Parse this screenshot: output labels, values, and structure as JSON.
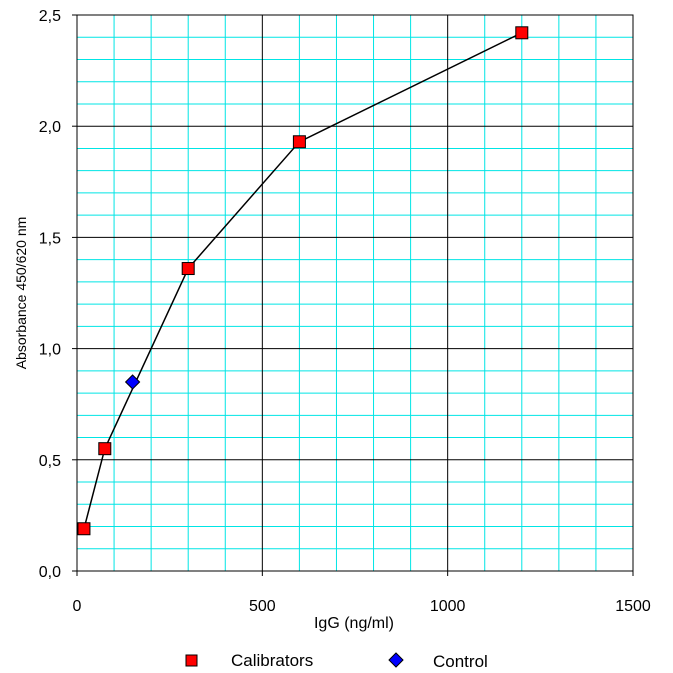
{
  "chart_data": {
    "type": "line",
    "title": "",
    "xlabel": "IgG (ng/ml)",
    "ylabel": "Absorbance 450/620 nm",
    "xlim": [
      0,
      1500
    ],
    "ylim": [
      0,
      2.5
    ],
    "x_major_ticks": [
      0,
      500,
      1000,
      1500
    ],
    "x_tick_labels": [
      "0",
      "500",
      "1000",
      "1500"
    ],
    "y_major_ticks": [
      0,
      0.5,
      1.0,
      1.5,
      2.0,
      2.5
    ],
    "y_tick_labels": [
      "0,0",
      "0,5",
      "1,0",
      "1,5",
      "2,0",
      "2,5"
    ],
    "x_minor_step": 100,
    "y_minor_step": 0.1,
    "grid": true,
    "grid_minor_color": "#00e5e5",
    "grid_major_color": "#000000",
    "legend_position": "bottom",
    "series": [
      {
        "name": "Calibrators",
        "marker": "square",
        "color": "#ff0000",
        "line": true,
        "points": [
          {
            "x": 18.75,
            "y": 0.19
          },
          {
            "x": 75,
            "y": 0.55
          },
          {
            "x": 300,
            "y": 1.36
          },
          {
            "x": 600,
            "y": 1.93
          },
          {
            "x": 1200,
            "y": 2.42
          }
        ]
      },
      {
        "name": "Control",
        "marker": "diamond",
        "color": "#0000ff",
        "line": false,
        "points": [
          {
            "x": 150,
            "y": 0.85
          }
        ]
      }
    ]
  }
}
